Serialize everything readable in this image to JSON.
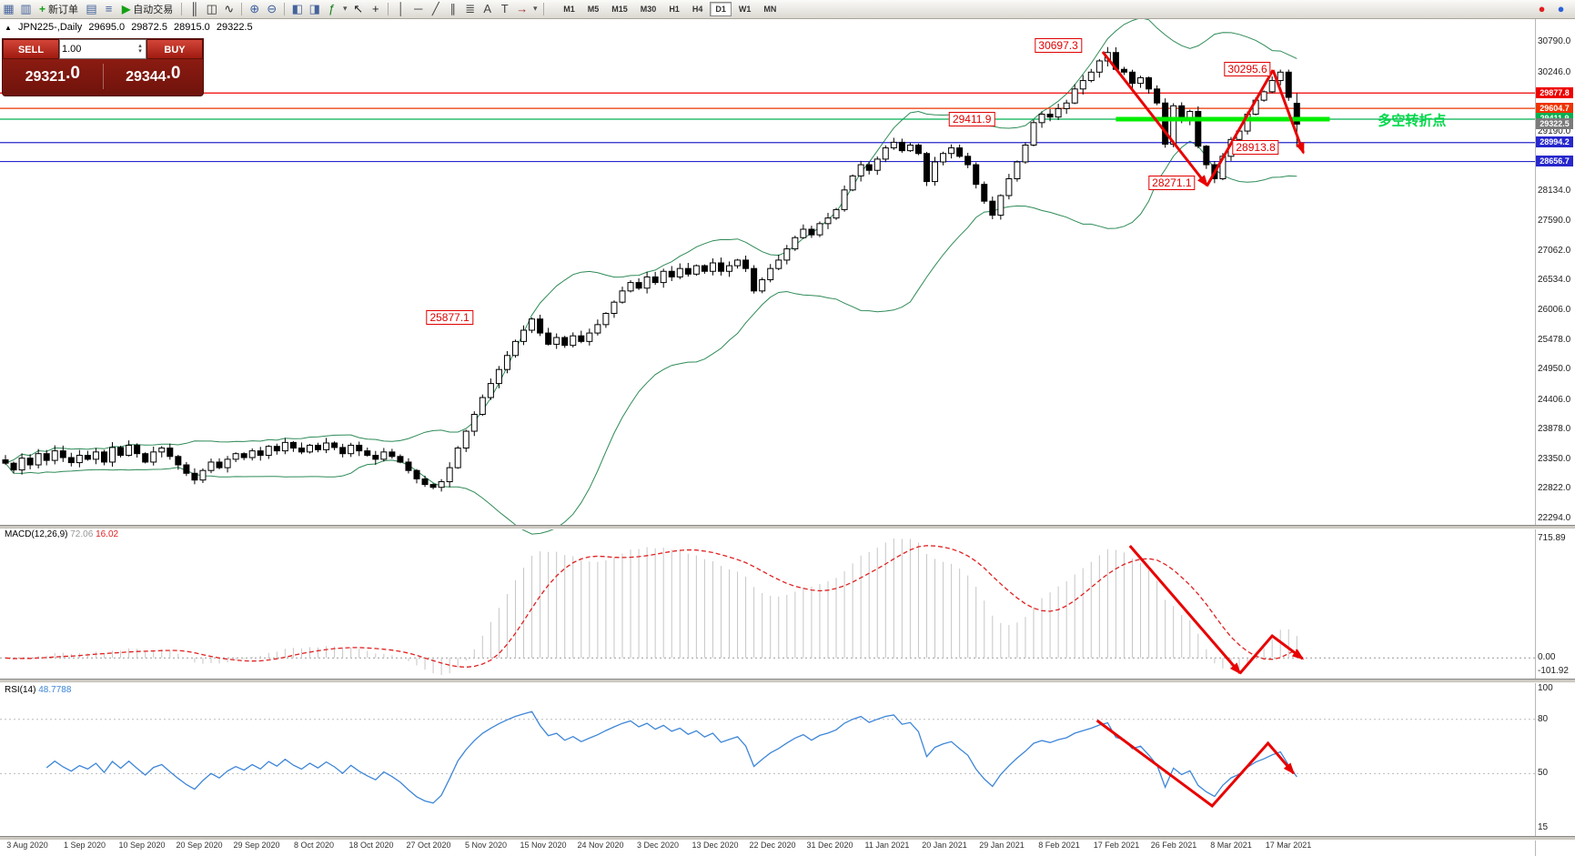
{
  "toolbar": {
    "icons": [
      {
        "name": "new-chart-icon",
        "glyph": "▦",
        "color": "#44639c"
      },
      {
        "name": "chart-profiles-icon",
        "glyph": "▥",
        "color": "#44639c"
      },
      {
        "name": "new-order-button",
        "type": "labeled",
        "glyph": "+",
        "glyph_color": "#14a014",
        "label": "新订单"
      },
      {
        "name": "market-watch-icon",
        "glyph": "▤",
        "color": "#44639c"
      },
      {
        "name": "navigator-icon",
        "glyph": "≡",
        "color": "#44639c"
      },
      {
        "name": "autotrading-button",
        "type": "labeled",
        "glyph": "▶",
        "glyph_color": "#14a014",
        "label": "自动交易"
      },
      {
        "type": "sep"
      },
      {
        "name": "bar-chart-icon",
        "glyph": "║",
        "color": "#333333"
      },
      {
        "name": "candlestick-chart-icon",
        "glyph": "◫",
        "color": "#333333"
      },
      {
        "name": "line-chart-icon",
        "glyph": "∿",
        "color": "#333333"
      },
      {
        "type": "sep"
      },
      {
        "name": "zoom-in-icon",
        "glyph": "⊕",
        "color": "#3a5f9f"
      },
      {
        "name": "zoom-out-icon",
        "glyph": "⊖",
        "color": "#3a5f9f"
      },
      {
        "type": "sep"
      },
      {
        "name": "tile-windows-icon",
        "glyph": "◧",
        "color": "#44639c"
      },
      {
        "name": "cascade-windows-icon",
        "glyph": "◨",
        "color": "#44639c"
      },
      {
        "name": "add-indicator-icon",
        "glyph": "ƒ",
        "color": "#14801a"
      },
      {
        "name": "indicator-list-caret-icon",
        "glyph": "▾",
        "color": "#555555",
        "small": true
      },
      {
        "name": "cursor-icon",
        "glyph": "↖",
        "color": "#222222"
      },
      {
        "name": "crosshair-icon",
        "glyph": "+",
        "color": "#222222"
      },
      {
        "type": "sep"
      },
      {
        "name": "vertical-line-icon",
        "glyph": "│",
        "color": "#444444"
      },
      {
        "name": "horizontal-line-icon",
        "glyph": "─",
        "color": "#444444"
      },
      {
        "name": "trendline-icon",
        "glyph": "╱",
        "color": "#444444"
      },
      {
        "name": "channel-icon",
        "glyph": "∥",
        "color": "#444444"
      },
      {
        "name": "fibonacci-icon",
        "glyph": "≣",
        "color": "#444444"
      },
      {
        "name": "text-icon",
        "glyph": "A",
        "color": "#444444"
      },
      {
        "name": "text-label-icon",
        "glyph": "T",
        "color": "#444444"
      },
      {
        "name": "arrow-objects-icon",
        "glyph": "→",
        "color": "#a03030"
      },
      {
        "name": "objects-caret-icon",
        "glyph": "▾",
        "color": "#555555",
        "small": true
      },
      {
        "type": "sep"
      }
    ],
    "timeframes": [
      "M1",
      "M5",
      "M15",
      "M30",
      "H1",
      "H4",
      "D1",
      "W1",
      "MN"
    ],
    "active_timeframe": "D1",
    "right_icons": [
      {
        "name": "news-badge-icon",
        "glyph": "●",
        "color": "#e02020"
      },
      {
        "name": "community-badge-icon",
        "glyph": "●",
        "color": "#2b62d9"
      }
    ]
  },
  "chart": {
    "symbol_info": {
      "collapse_arrow": "▲",
      "symbol": "JPN225-,Daily",
      "open": "29695.0",
      "high": "29872.5",
      "low": "28915.0",
      "close": "29322.5"
    },
    "trade_panel": {
      "sell_label": "SELL",
      "buy_label": "BUY",
      "volume": "1.00",
      "sell_price": "29321",
      "sell_frac": ".0",
      "buy_price": "29344",
      "buy_frac": ".0"
    }
  },
  "chart_data": [
    {
      "type": "candlestick",
      "title": "JPN225- Daily with Bollinger Bands",
      "closes": [
        23280,
        23160,
        23370,
        23250,
        23450,
        23330,
        23500,
        23380,
        23290,
        23420,
        23350,
        23480,
        23300,
        23560,
        23420,
        23600,
        23450,
        23300,
        23480,
        23550,
        23400,
        23250,
        23100,
        22980,
        23150,
        23300,
        23200,
        23350,
        23450,
        23380,
        23500,
        23420,
        23580,
        23500,
        23650,
        23550,
        23480,
        23600,
        23520,
        23640,
        23560,
        23450,
        23600,
        23500,
        23420,
        23350,
        23480,
        23400,
        23300,
        23150,
        23000,
        22900,
        22850,
        22950,
        23200,
        23550,
        23850,
        24150,
        24450,
        24700,
        24950,
        25200,
        25450,
        25650,
        25850,
        25600,
        25400,
        25520,
        25380,
        25550,
        25450,
        25600,
        25750,
        25950,
        26150,
        26350,
        26500,
        26400,
        26600,
        26500,
        26700,
        26600,
        26750,
        26650,
        26800,
        26700,
        26850,
        26700,
        26800,
        26900,
        26750,
        26350,
        26550,
        26750,
        26900,
        27100,
        27300,
        27450,
        27350,
        27550,
        27650,
        27800,
        28150,
        28400,
        28600,
        28500,
        28700,
        28900,
        29000,
        28850,
        28950,
        28800,
        28300,
        28650,
        28800,
        28900,
        28750,
        28600,
        28250,
        27950,
        27700,
        28050,
        28350,
        28650,
        28950,
        29350,
        29500,
        29450,
        29600,
        29700,
        29950,
        30100,
        30250,
        30450,
        30600,
        30300,
        30250,
        30050,
        30150,
        29950,
        29700,
        28966,
        29650,
        29400,
        29550,
        28930,
        28600,
        28350,
        28750,
        29050,
        29200,
        29500,
        29750,
        29900,
        30100,
        30250,
        29800,
        29322.5
      ],
      "key_candles": {
        "64": {
          "high": 25877.1
        },
        "134": {
          "high": 30697.3
        },
        "147": {
          "low": 28271.1
        },
        "155": {
          "high": 30295.6
        },
        "157": {
          "open": 29695.0,
          "high": 29872.5,
          "low": 28915.0
        }
      },
      "bollinger": {
        "period": 20,
        "deviation": 2,
        "color": "#2E8B57"
      },
      "price_axis_labels": [
        "30790.0",
        "30246.0",
        "29190.0",
        "28134.0",
        "27590.0",
        "27062.0",
        "26534.0",
        "26006.0",
        "25478.0",
        "24950.0",
        "24406.0",
        "23878.0",
        "23350.0",
        "22822.0",
        "22294.0"
      ],
      "date_labels": [
        "3 Aug 2020",
        "1 Sep 2020",
        "10 Sep 2020",
        "20 Sep 2020",
        "29 Sep 2020",
        "8 Oct 2020",
        "18 Oct 2020",
        "27 Oct 2020",
        "5 Nov 2020",
        "15 Nov 2020",
        "24 Nov 2020",
        "3 Dec 2020",
        "13 Dec 2020",
        "22 Dec 2020",
        "31 Dec 2020",
        "11 Jan 2021",
        "20 Jan 2021",
        "29 Jan 2021",
        "8 Feb 2021",
        "17 Feb 2021",
        "26 Feb 2021",
        "8 Mar 2021",
        "17 Mar 2021"
      ],
      "hlines": [
        {
          "price": 29877.8,
          "color": "#ee0000"
        },
        {
          "price": 29604.7,
          "color": "#ee3300"
        },
        {
          "price": 29411.9,
          "color": "#00b050"
        },
        {
          "price": 28994.2,
          "color": "#2727cc"
        },
        {
          "price": 28656.7,
          "color": "#2727cc"
        }
      ],
      "price_tags": [
        {
          "text": "29877.8",
          "bg": "#ee0000"
        },
        {
          "text": "29604.7",
          "bg": "#ee3300"
        },
        {
          "text": "29411.9",
          "bg": "#00b050"
        },
        {
          "text": "29322.5",
          "bg": "#7a7a7a"
        },
        {
          "text": "28994.2",
          "bg": "#2727cc"
        },
        {
          "text": "28656.7",
          "bg": "#2727cc"
        }
      ],
      "annotations": [
        {
          "text": "30697.3",
          "index": 128,
          "price": 30730
        },
        {
          "text": "30295.6",
          "index": 151,
          "price": 30300
        },
        {
          "text": "29411.9",
          "index": 117.5,
          "price": 29411.9
        },
        {
          "text": "28913.8",
          "index": 152,
          "price": 28913.8
        },
        {
          "text": "28271.1",
          "index": 141.8,
          "price": 28271.1
        },
        {
          "text": "25877.1",
          "index": 54,
          "price": 25877.1
        }
      ],
      "highlight_segment": {
        "price": 29411.9,
        "from_index": 135,
        "to_index": 161,
        "color": "#00ee00"
      },
      "trend_arrows": [
        {
          "points": [
            [
              133.4,
              30612
            ],
            [
              146.1,
              28228
            ]
          ],
          "head": true
        },
        {
          "points": [
            [
              146.1,
              28228
            ],
            [
              154.1,
              30287
            ]
          ],
          "head": false
        },
        {
          "points": [
            [
              154.1,
              30287
            ],
            [
              157.8,
              28812
            ]
          ],
          "head": true
        }
      ],
      "turning_point_label": {
        "text": "多空转折点",
        "index": 171,
        "price": 29400,
        "color": "#00d84a"
      }
    },
    {
      "type": "macd",
      "label": "MACD(12,26,9)",
      "value_main": "72.06",
      "value_signal": "16.02",
      "params": {
        "fast": 12,
        "slow": 26,
        "signal": 9
      },
      "axis_labels": {
        "max": "715.89",
        "zero": "0.00",
        "min": "-101.92"
      },
      "histogram_color": "#c6c6c6",
      "signal_color": "#e02020",
      "arrows": [
        {
          "points": [
            [
              136.7,
              0.053
            ],
            [
              150.1,
              0.987
            ]
          ],
          "head": true
        },
        {
          "points": [
            [
              150.1,
              0.987
            ],
            [
              154.0,
              0.713
            ],
            [
              157.7,
              0.88
            ]
          ],
          "head": true
        }
      ]
    },
    {
      "type": "rsi",
      "label": "RSI(14)",
      "value": "48.7788",
      "period": 14,
      "line_color": "#3E86D8",
      "scale": {
        "min": 15,
        "max": 100,
        "levels": [
          80,
          50
        ]
      },
      "axis_labels": [
        "100",
        "80",
        "50",
        "15"
      ],
      "arrows": [
        {
          "points": [
            [
              132.7,
              79.4
            ],
            [
              146.7,
              32.1
            ],
            [
              153.5,
              66.8
            ],
            [
              156.6,
              50.2
            ]
          ],
          "head": true
        }
      ]
    }
  ]
}
